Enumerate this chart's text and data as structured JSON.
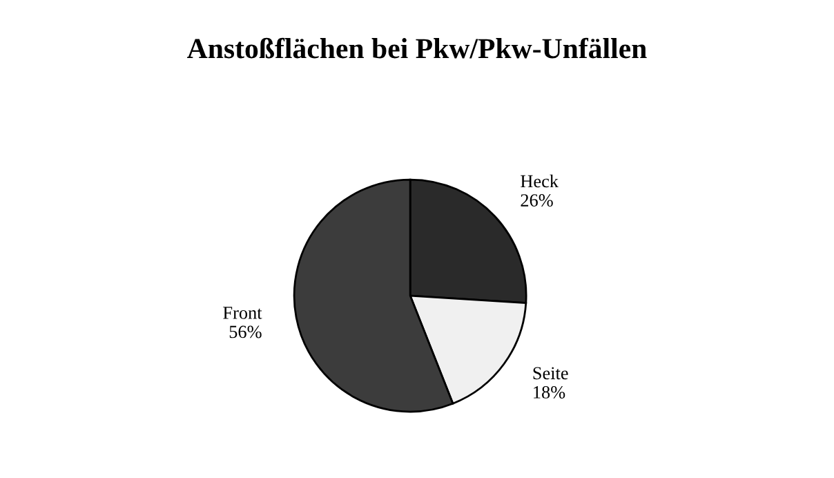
{
  "chart_data": {
    "type": "pie",
    "title": "Anstoßflächen bei Pkw/Pkw-Unfällen",
    "categories": [
      "Heck",
      "Seite",
      "Front"
    ],
    "values": [
      26,
      18,
      56
    ],
    "value_labels": [
      "26%",
      "18%",
      "56%"
    ],
    "colors": [
      "#2a2a2a",
      "#f0f0f0",
      "#3c3c3c"
    ]
  }
}
